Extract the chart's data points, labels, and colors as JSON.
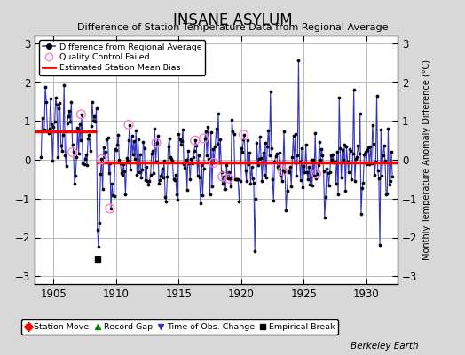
{
  "title": "INSANE ASYLUM",
  "subtitle": "Difference of Station Temperature Data from Regional Average",
  "ylabel": "Monthly Temperature Anomaly Difference (°C)",
  "xlim": [
    1903.5,
    1932.5
  ],
  "ylim": [
    -3.2,
    3.2
  ],
  "yticks": [
    -3,
    -2,
    -1,
    0,
    1,
    2,
    3
  ],
  "xticks": [
    1905,
    1910,
    1915,
    1920,
    1925,
    1930
  ],
  "background_color": "#d8d8d8",
  "plot_bg_color": "#ffffff",
  "grid_color": "#b0b0b0",
  "line_color": "#3333bb",
  "marker_color": "#000000",
  "bias_line_color": "#ff0000",
  "bias_line_value_early": 0.72,
  "bias_line_value_late": -0.07,
  "bias_break_year": 1908.42,
  "empirical_break_year": 1908.5,
  "empirical_break_value": -2.55,
  "footnote": "Berkeley Earth",
  "seed": 12345
}
